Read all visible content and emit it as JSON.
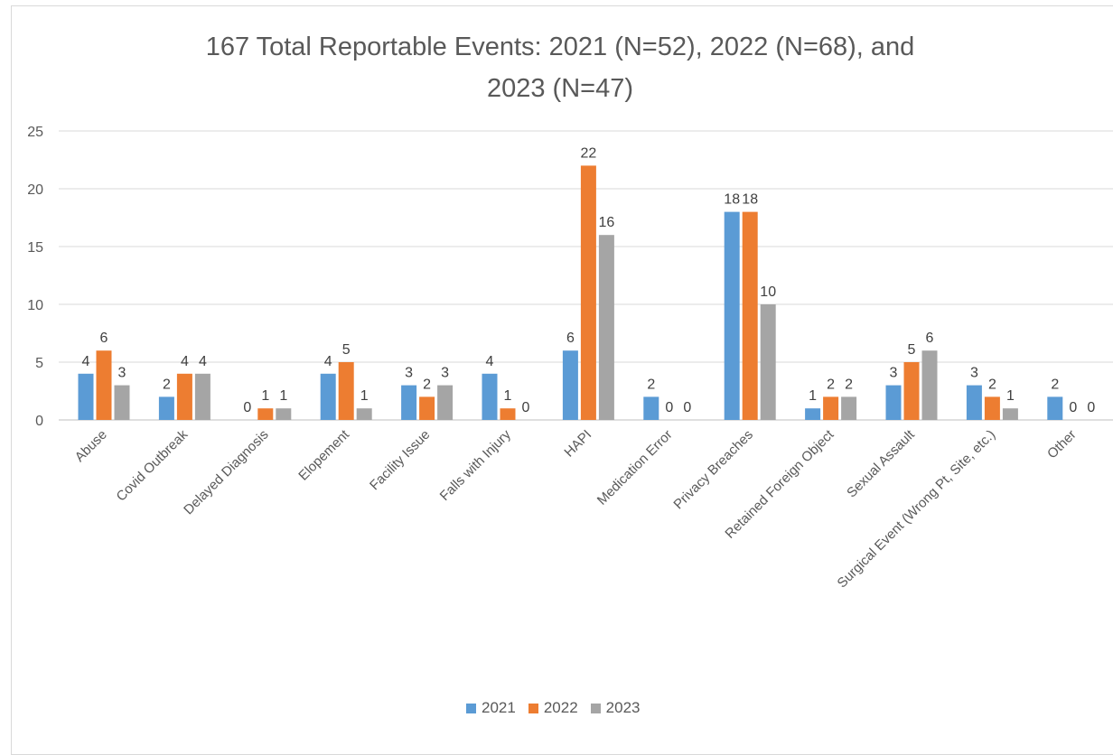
{
  "chart_data": {
    "type": "bar",
    "title_line1": "167 Total Reportable Events: 2021 (N=52), 2022 (N=68), and",
    "title_line2": "2023 (N=47)",
    "xlabel": "",
    "ylabel": "",
    "ylim": [
      0,
      25
    ],
    "yticks": [
      0,
      5,
      10,
      15,
      20,
      25
    ],
    "grid": true,
    "legend_placement": "bottom",
    "categories": [
      "Abuse",
      "Covid Outbreak",
      "Delayed Diagnosis",
      "Elopement",
      "Facility Issue",
      "Falls with Injury",
      "HAPI",
      "Medication Error",
      "Privacy Breaches",
      "Retained Foreign Object",
      "Sexual Assault",
      "Surgical Event (Wrong Pt, Site, etc.)",
      "Other"
    ],
    "series": [
      {
        "name": "2021",
        "color": "#5b9bd5",
        "values": [
          4,
          2,
          0,
          4,
          3,
          4,
          6,
          2,
          18,
          1,
          3,
          3,
          2
        ]
      },
      {
        "name": "2022",
        "color": "#ed7d31",
        "values": [
          6,
          4,
          1,
          5,
          2,
          1,
          22,
          0,
          18,
          2,
          5,
          2,
          0
        ]
      },
      {
        "name": "2023",
        "color": "#a5a5a5",
        "values": [
          3,
          4,
          1,
          1,
          3,
          0,
          16,
          0,
          10,
          2,
          6,
          1,
          0
        ]
      }
    ]
  }
}
